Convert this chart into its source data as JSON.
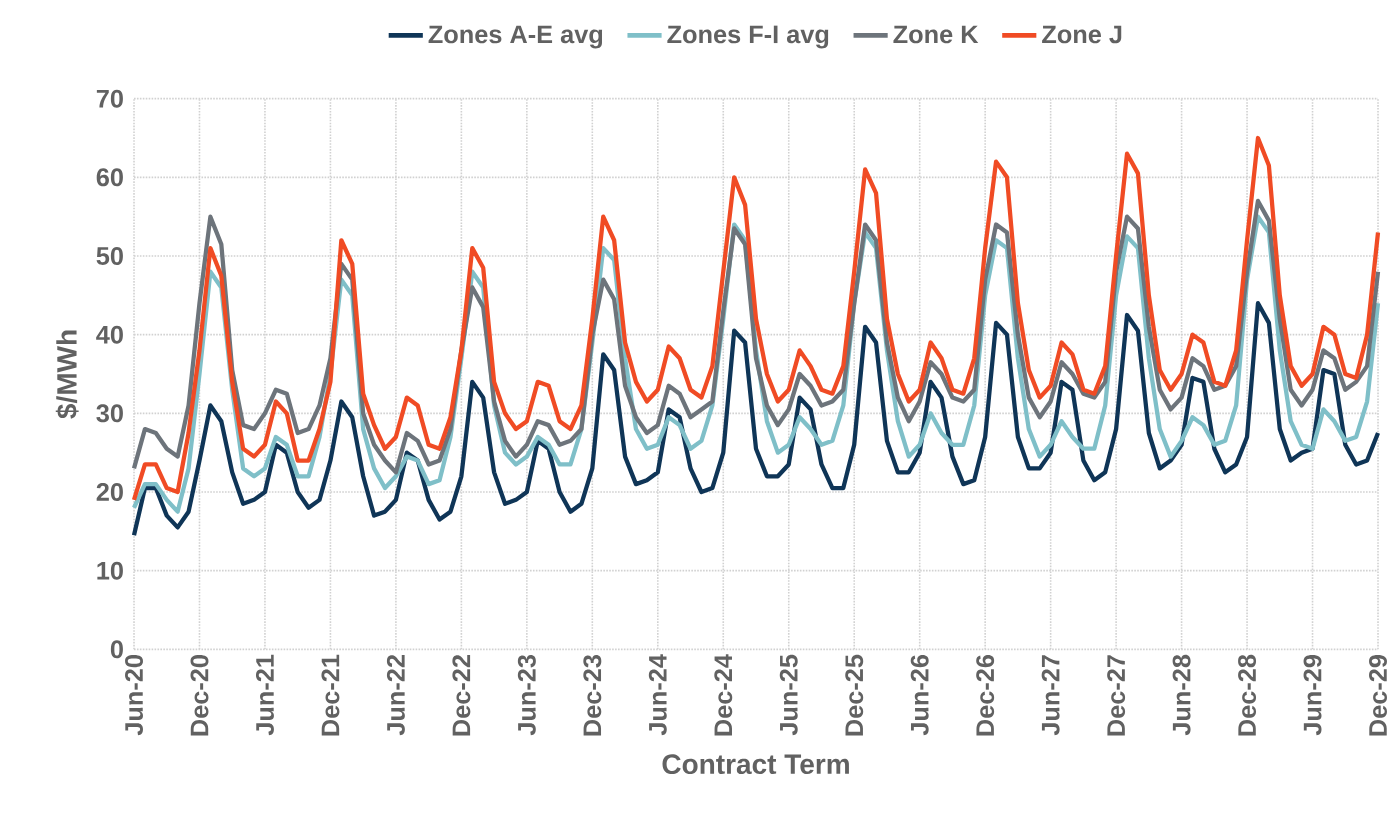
{
  "chart_data": {
    "type": "line",
    "xlabel": "Contract Term",
    "ylabel": "$/MWh",
    "categories": [
      "Jun-20",
      null,
      null,
      null,
      null,
      null,
      "Dec-20",
      null,
      null,
      null,
      null,
      null,
      "Jun-21",
      null,
      null,
      null,
      null,
      null,
      "Dec-21",
      null,
      null,
      null,
      null,
      null,
      "Jun-22",
      null,
      null,
      null,
      null,
      null,
      "Dec-22",
      null,
      null,
      null,
      null,
      null,
      "Jun-23",
      null,
      null,
      null,
      null,
      null,
      "Dec-23",
      null,
      null,
      null,
      null,
      null,
      "Jun-24",
      null,
      null,
      null,
      null,
      null,
      "Dec-24",
      null,
      null,
      null,
      null,
      null,
      "Jun-25",
      null,
      null,
      null,
      null,
      null,
      "Dec-25",
      null,
      null,
      null,
      null,
      null,
      "Jun-26",
      null,
      null,
      null,
      null,
      null,
      "Dec-26",
      null,
      null,
      null,
      null,
      null,
      "Jun-27",
      null,
      null,
      null,
      null,
      null,
      "Dec-27",
      null,
      null,
      null,
      null,
      null,
      "Jun-28",
      null,
      null,
      null,
      null,
      null,
      "Dec-28",
      null,
      null,
      null,
      null,
      null,
      "Jun-29",
      null,
      null,
      null,
      null,
      null,
      "Dec-29"
    ],
    "series": [
      {
        "name": "Zones A-E avg",
        "color": "#0f3557",
        "values": [
          14.5,
          20.5,
          20.5,
          17,
          15.5,
          17.5,
          24,
          31,
          29,
          22.5,
          18.5,
          19,
          20,
          26,
          25,
          20,
          18,
          19,
          24,
          31.5,
          29.5,
          22,
          17,
          17.5,
          19,
          25,
          24,
          19,
          16.5,
          17.5,
          22,
          34,
          32,
          22.5,
          18.5,
          19,
          20,
          26.5,
          25.5,
          20,
          17.5,
          18.5,
          23,
          37.5,
          35.5,
          24.5,
          21,
          21.5,
          22.5,
          30.5,
          29.5,
          23,
          20,
          20.5,
          25,
          40.5,
          39,
          25.5,
          22,
          22,
          23.5,
          32,
          30.5,
          23.5,
          20.5,
          20.5,
          26,
          41,
          39,
          26.5,
          22.5,
          22.5,
          25,
          34,
          32,
          24.5,
          21,
          21.5,
          27,
          41.5,
          40,
          27,
          23,
          23,
          25,
          34,
          33,
          24,
          21.5,
          22.5,
          28,
          42.5,
          40.5,
          27.5,
          23,
          24,
          26,
          34.5,
          34,
          25.5,
          22.5,
          23.5,
          27,
          44,
          41.5,
          28,
          24,
          25,
          25.5,
          35.5,
          35,
          26,
          23.5,
          24,
          27.5
        ]
      },
      {
        "name": "Zones F-I avg",
        "color": "#7fbfc8",
        "values": [
          18,
          21,
          21,
          19,
          17.5,
          23,
          35,
          48,
          46,
          33,
          23,
          22,
          23,
          27,
          26,
          22,
          22,
          27,
          35,
          47,
          45,
          28,
          23,
          20.5,
          22,
          24.5,
          24,
          21,
          21.5,
          27,
          37,
          48,
          46,
          31,
          25,
          23.5,
          24.5,
          27,
          26,
          23.5,
          23.5,
          28,
          39,
          51,
          49.5,
          37,
          28,
          25.5,
          26,
          29.5,
          28.5,
          25.5,
          26.5,
          31,
          42,
          54,
          52,
          38,
          29,
          25,
          26,
          29.5,
          28,
          26,
          26.5,
          31,
          44,
          53,
          51,
          38,
          29,
          24.5,
          26,
          30,
          27.5,
          26,
          26,
          31,
          45,
          52,
          51,
          37,
          28,
          24.5,
          26,
          29,
          27,
          25.5,
          25.5,
          31,
          45,
          52.5,
          51,
          37,
          28,
          24.5,
          26.5,
          29.5,
          28.5,
          26,
          26.5,
          31,
          47,
          55,
          53,
          38,
          29,
          26,
          25.5,
          30.5,
          29,
          26.5,
          27,
          31.5,
          44
        ]
      },
      {
        "name": "Zone K",
        "color": "#6d747b",
        "values": [
          23,
          28,
          27.5,
          25.5,
          24.5,
          31,
          44,
          55,
          51.5,
          35.5,
          28.5,
          28,
          30,
          33,
          32.5,
          27.5,
          28,
          31,
          37,
          49,
          47,
          30,
          26,
          24,
          22.5,
          27.5,
          26.5,
          23.5,
          24,
          28,
          38,
          46,
          43.5,
          31.5,
          26.5,
          24.5,
          26,
          29,
          28.5,
          26,
          26.5,
          28,
          40,
          47,
          44.5,
          33.5,
          29.5,
          27.5,
          28.5,
          33.5,
          32.5,
          29.5,
          30.5,
          31.5,
          43,
          53.5,
          51.5,
          37,
          31,
          28.5,
          30.5,
          35,
          33.5,
          31,
          31.5,
          33,
          44,
          54,
          52,
          39,
          32,
          29,
          31.5,
          36.5,
          35,
          32,
          31.5,
          33,
          47,
          54,
          53,
          40,
          32,
          29.5,
          31.5,
          36.5,
          35,
          32.5,
          32,
          34,
          48,
          55,
          53.5,
          41,
          33,
          30.5,
          32,
          37,
          36,
          33,
          33.5,
          36,
          48,
          57,
          54.5,
          42,
          33,
          31,
          33,
          38,
          37,
          33,
          34,
          36,
          48
        ]
      },
      {
        "name": "Zone J",
        "color": "#f04b24",
        "values": [
          19,
          23.5,
          23.5,
          20.5,
          20,
          27.5,
          38,
          51,
          47.5,
          34,
          25.5,
          24.5,
          26,
          31.5,
          30,
          24,
          24,
          28,
          34,
          52,
          49,
          32.5,
          28.5,
          25.5,
          27,
          32,
          31,
          26,
          25.5,
          29.5,
          38,
          51,
          48.5,
          34,
          30,
          28,
          29,
          34,
          33.5,
          29,
          28,
          31,
          42,
          55,
          52,
          39,
          34,
          31.5,
          33,
          38.5,
          37,
          33,
          32,
          36,
          48,
          60,
          56.5,
          42,
          35,
          31.5,
          33,
          38,
          36,
          33,
          32.5,
          36,
          48,
          61,
          58,
          42,
          35,
          31.5,
          33,
          39,
          37,
          33,
          32.5,
          37,
          51,
          62,
          60,
          44,
          35.5,
          32,
          33.5,
          39,
          37.5,
          33,
          32.5,
          36,
          50,
          63,
          60.5,
          45,
          35.5,
          33,
          35,
          40,
          39,
          34,
          33.5,
          38,
          52,
          65,
          61.5,
          45,
          36,
          33.5,
          35,
          41,
          40,
          35,
          34.5,
          40,
          53
        ]
      }
    ],
    "ylim": [
      0,
      70
    ],
    "yticks": [
      0,
      10,
      20,
      30,
      40,
      50,
      60,
      70
    ],
    "grid": true,
    "legend": "top",
    "line_style": "solid"
  }
}
